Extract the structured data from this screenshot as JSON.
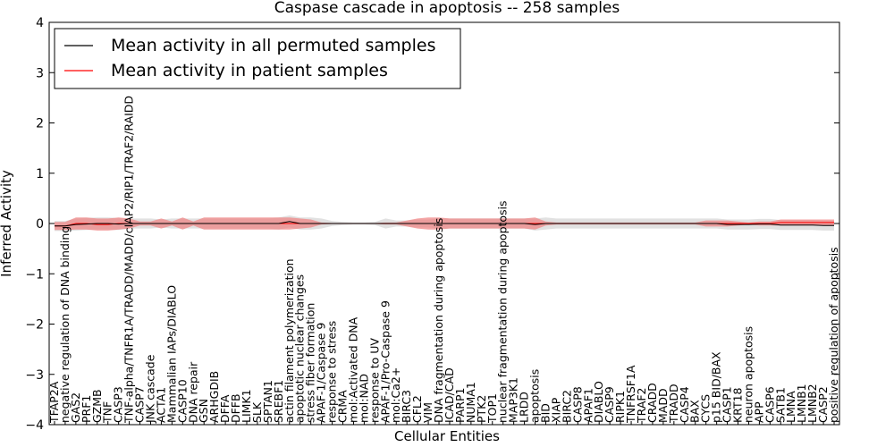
{
  "chart_data": {
    "type": "line",
    "title": "Caspase cascade in apoptosis -- 258 samples",
    "xlabel": "Cellular Entities",
    "ylabel": "Inferred Activity",
    "ylim": [
      -4,
      4
    ],
    "yticks": [
      "4",
      "3",
      "2",
      "1",
      "0",
      "−1",
      "−2",
      "−3",
      "−4"
    ],
    "legend_position": "top-left",
    "categories": [
      "TFAP2A",
      "negative regulation of DNA binding",
      "GAS2",
      "PRF1",
      "GZMB",
      "TNF",
      "CASP3",
      "TNF-alpha/TNFR1A/TRADD/MADD/cIAP2/RIP1/TRAF2/RAIDD",
      "CASP7",
      "JNK cascade",
      "ACTA1",
      "Mammalian IAPs/DIABLO",
      "CASP10",
      "DNA repair",
      "GSN",
      "ARHGDIB",
      "DFFA",
      "DFFB",
      "LIMK1",
      "SLK",
      "SPTAN1",
      "SREBF1",
      "actin filament polymerization",
      "apoptotic nuclear changes",
      "stress fiber formation",
      "APAF-1/Caspase 9",
      "response to stress",
      "CRMA",
      "mol:Activated DNA",
      "mol:NAD",
      "response to UV",
      "APAF-1/Pro-Caspase 9",
      "mol:Ca2+",
      "BIRC3",
      "CFL2",
      "VIM",
      "DNA fragmentation during apoptosis",
      "ICAD/CAD",
      "PARP1",
      "NUMA1",
      "PTK2",
      "TOP1",
      "nuclear fragmentation during apoptosis",
      "MAP3K1",
      "LRDD",
      "apoptosis",
      "BID",
      "XIAP",
      "BIRC2",
      "CASP8",
      "APAF1",
      "DIABLO",
      "CASP9",
      "RIPK1",
      "TNFRSF1A",
      "TRAF2",
      "CRADD",
      "MADD",
      "TRADD",
      "CASP4",
      "BAX",
      "CYCS",
      "p15 BID/BAX",
      "CASP1",
      "KRT18",
      "neuron apoptosis",
      "APP",
      "CASP6",
      "SATB1",
      "LMNA",
      "LMNB1",
      "LMNB2",
      "CASP2",
      "positive regulation of apoptosis"
    ],
    "series": [
      {
        "name": "Mean activity in all permuted samples",
        "color": "#000000",
        "band_color": "#bdbdbd",
        "values": [
          -0.05,
          -0.05,
          -0.02,
          -0.01,
          0,
          0,
          -0.01,
          0,
          0,
          0,
          0,
          0,
          0,
          0,
          0,
          0,
          0,
          0,
          0,
          0,
          0,
          0,
          0.04,
          0,
          0,
          0,
          0,
          0,
          0,
          0,
          0,
          0,
          0,
          0,
          0,
          0,
          0,
          0,
          0,
          0,
          0,
          0,
          0,
          0,
          0,
          -0.02,
          0,
          0,
          0,
          0,
          0,
          0,
          0,
          0,
          0,
          0,
          0,
          0,
          0,
          0,
          0,
          0,
          0,
          -0.02,
          -0.02,
          -0.02,
          -0.01,
          -0.01,
          -0.03,
          -0.03,
          -0.03,
          -0.03,
          -0.04,
          -0.04
        ],
        "spread": [
          0.1,
          0.1,
          0.12,
          0.12,
          0.12,
          0.12,
          0.12,
          0.1,
          0.1,
          0.1,
          0.08,
          0.1,
          0.1,
          0.1,
          0.1,
          0.1,
          0.1,
          0.1,
          0.1,
          0.1,
          0.1,
          0.12,
          0.12,
          0.12,
          0.12,
          0.1,
          0.05,
          0.03,
          0.02,
          0.02,
          0.03,
          0.1,
          0.06,
          0.06,
          0.08,
          0.08,
          0.1,
          0.1,
          0.1,
          0.1,
          0.1,
          0.1,
          0.1,
          0.1,
          0.1,
          0.12,
          0.12,
          0.1,
          0.1,
          0.1,
          0.1,
          0.1,
          0.1,
          0.1,
          0.1,
          0.1,
          0.1,
          0.1,
          0.1,
          0.1,
          0.1,
          0.1,
          0.1,
          0.1,
          0.1,
          0.1,
          0.1,
          0.1,
          0.1,
          0.1,
          0.1,
          0.1,
          0.1,
          0.1
        ]
      },
      {
        "name": "Mean activity in patient samples",
        "color": "#ff0000",
        "band_color": "#f08080",
        "values": [
          -0.05,
          -0.05,
          0,
          0,
          -0.02,
          -0.02,
          0,
          0,
          0,
          0,
          0,
          0,
          0,
          0,
          0,
          0,
          0,
          0,
          0,
          0,
          0,
          0,
          0,
          0,
          0,
          0,
          0,
          0,
          0,
          0,
          0,
          0,
          0,
          0,
          0,
          0,
          0,
          0,
          0,
          0,
          0,
          0,
          0,
          0,
          0,
          0,
          0,
          0,
          0,
          0,
          0,
          0,
          0,
          0,
          0,
          0,
          0,
          0,
          0,
          0,
          0,
          0,
          0,
          0,
          0,
          0,
          0,
          0,
          0.02,
          0.02,
          0.02,
          0.02,
          0.02,
          0.02
        ],
        "spread": [
          0.08,
          0.08,
          0.12,
          0.12,
          0.12,
          0.12,
          0.12,
          0.1,
          0.04,
          0.04,
          0.1,
          0.04,
          0.12,
          0.04,
          0.12,
          0.12,
          0.12,
          0.12,
          0.12,
          0.12,
          0.12,
          0.12,
          0.12,
          0.1,
          0.08,
          0.02,
          0.01,
          0.01,
          0.01,
          0.01,
          0.01,
          0.02,
          0.02,
          0.06,
          0.1,
          0.12,
          0.12,
          0.1,
          0.1,
          0.1,
          0.1,
          0.1,
          0.1,
          0.1,
          0.1,
          0.12,
          0.04,
          0.02,
          0.02,
          0.02,
          0.02,
          0.02,
          0.02,
          0.02,
          0.02,
          0.02,
          0.02,
          0.02,
          0.02,
          0.02,
          0.02,
          0.06,
          0.06,
          0.06,
          0.04,
          0.02,
          0.04,
          0.04,
          0.06,
          0.06,
          0.06,
          0.06,
          0.06,
          0.06
        ]
      }
    ]
  }
}
